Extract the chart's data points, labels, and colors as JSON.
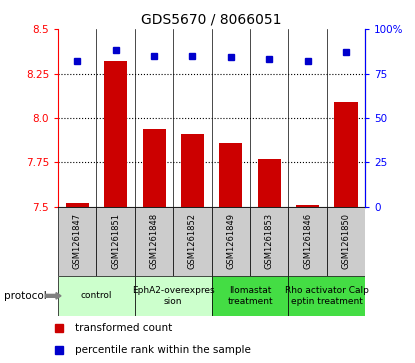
{
  "title": "GDS5670 / 8066051",
  "samples": [
    "GSM1261847",
    "GSM1261851",
    "GSM1261848",
    "GSM1261852",
    "GSM1261849",
    "GSM1261853",
    "GSM1261846",
    "GSM1261850"
  ],
  "transformed_count": [
    7.52,
    8.32,
    7.94,
    7.91,
    7.86,
    7.77,
    7.51,
    8.09
  ],
  "percentile_rank": [
    82,
    88,
    85,
    85,
    84,
    83,
    82,
    87
  ],
  "ylim_left": [
    7.5,
    8.5
  ],
  "ylim_right": [
    0,
    100
  ],
  "yticks_left": [
    7.5,
    7.75,
    8.0,
    8.25,
    8.5
  ],
  "yticks_right": [
    0,
    25,
    50,
    75,
    100
  ],
  "ytick_labels_right": [
    "0",
    "25",
    "50",
    "75",
    "100%"
  ],
  "bar_color": "#cc0000",
  "dot_color": "#0000cc",
  "background_color": "#ffffff",
  "protocols": [
    {
      "label": "control",
      "start": 0,
      "end": 2,
      "color": "#ccffcc"
    },
    {
      "label": "EphA2-overexpres\nsion",
      "start": 2,
      "end": 4,
      "color": "#ccffcc"
    },
    {
      "label": "Ilomastat\ntreatment",
      "start": 4,
      "end": 6,
      "color": "#44dd44"
    },
    {
      "label": "Rho activator Calp\neptin treatment",
      "start": 6,
      "end": 8,
      "color": "#44dd44"
    }
  ],
  "protocol_label": "protocol",
  "legend_bar_label": "transformed count",
  "legend_dot_label": "percentile rank within the sample",
  "sample_bg_color": "#cccccc",
  "grid_dotted_ticks": [
    7.75,
    8.0,
    8.25
  ]
}
